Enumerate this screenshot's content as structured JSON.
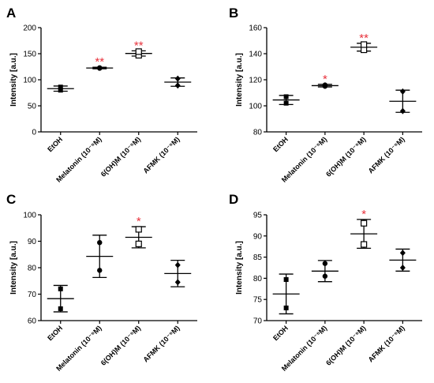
{
  "chart_data": [
    {
      "panel": "A",
      "type": "scatter",
      "ylabel": "Intensity [a.u.]",
      "ylim": [
        0,
        200
      ],
      "yticks": [
        0,
        50,
        100,
        150,
        200
      ],
      "categories": [
        "EtOH",
        "Melatonin (10⁻⁵M)",
        "6(OH)M (10⁻⁵M)",
        "AFMK (10⁻⁵M)"
      ],
      "markers": [
        "square",
        "circle",
        "square-open",
        "diamond"
      ],
      "points": [
        [
          80,
          86
        ],
        [
          122,
          123
        ],
        [
          147,
          154
        ],
        [
          89,
          102
        ]
      ],
      "mean": [
        83,
        122.5,
        150.5,
        95.5
      ],
      "sd": [
        5,
        1.5,
        5,
        8
      ],
      "significance": [
        "",
        "**",
        "**",
        ""
      ]
    },
    {
      "panel": "B",
      "type": "scatter",
      "ylabel": "Intensity [a.u.]",
      "ylim": [
        80,
        160
      ],
      "yticks": [
        80,
        100,
        120,
        140,
        160
      ],
      "categories": [
        "EtOH",
        "Melatonin (10⁻⁵M)",
        "6(OH)M (10⁻⁵M)",
        "AFMK (10⁻⁵M)"
      ],
      "markers": [
        "square",
        "circle",
        "square-open",
        "diamond"
      ],
      "points": [
        [
          102,
          107
        ],
        [
          115,
          116
        ],
        [
          143,
          147
        ],
        [
          96,
          111
        ]
      ],
      "mean": [
        104.5,
        115.5,
        145,
        103.5
      ],
      "sd": [
        3.5,
        1,
        3,
        8.5
      ],
      "significance": [
        "",
        "*",
        "**",
        ""
      ]
    },
    {
      "panel": "C",
      "type": "scatter",
      "ylabel": "Intensity [a.u.]",
      "ylim": [
        60,
        100
      ],
      "yticks": [
        60,
        70,
        80,
        90,
        100
      ],
      "categories": [
        "EtOH",
        "Melatonin (10⁻⁵M)",
        "6(OH)M (10⁻⁵M)",
        "AFMK (10⁻⁵M)"
      ],
      "markers": [
        "square",
        "circle",
        "square-open",
        "diamond"
      ],
      "points": [
        [
          64.5,
          72
        ],
        [
          79,
          89.5
        ],
        [
          89,
          94.5
        ],
        [
          74.5,
          81
        ]
      ],
      "mean": [
        68.3,
        84.3,
        91.5,
        77.8
      ],
      "sd": [
        5,
        8,
        4,
        5
      ],
      "significance": [
        "",
        "",
        "*",
        ""
      ]
    },
    {
      "panel": "D",
      "type": "scatter",
      "ylabel": "Intensity [a.u.]",
      "ylim": [
        70,
        95
      ],
      "yticks": [
        70,
        75,
        80,
        85,
        90,
        95
      ],
      "categories": [
        "EtOH",
        "Melatonin (10⁻⁵M)",
        "6(OH)M (10⁻⁵M)",
        "AFMK (10⁻⁵M)"
      ],
      "markers": [
        "square",
        "circle",
        "square-open",
        "diamond"
      ],
      "points": [
        [
          73,
          79.7
        ],
        [
          80.5,
          83.5
        ],
        [
          88,
          93
        ],
        [
          82.5,
          86
        ]
      ],
      "mean": [
        76.3,
        81.7,
        90.5,
        84.3
      ],
      "sd": [
        4.7,
        2.5,
        3.4,
        2.6
      ],
      "significance": [
        "",
        "",
        "*",
        ""
      ]
    }
  ]
}
